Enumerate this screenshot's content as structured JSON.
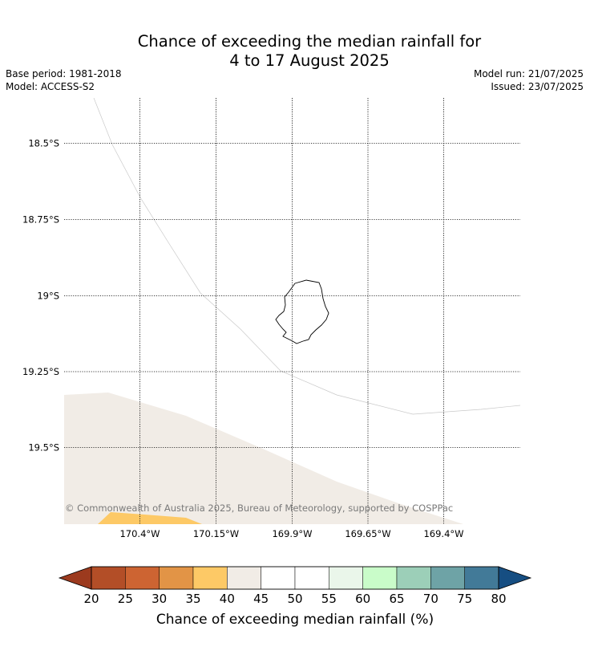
{
  "title": {
    "line1": "Chance of exceeding the median rainfall for",
    "line2": "4 to 17 August 2025"
  },
  "meta": {
    "base_period": "Base period: 1981-2018",
    "model": "Model: ACCESS-S2",
    "model_run": "Model run: 21/07/2025",
    "issued": "Issued: 23/07/2025"
  },
  "map": {
    "lat_labels": [
      "18.5°S",
      "18.75°S",
      "19°S",
      "19.25°S",
      "19.5°S"
    ],
    "lon_labels": [
      "170.4°W",
      "170.15°W",
      "169.9°W",
      "169.65°W",
      "169.4°W"
    ],
    "copyright": "© Commonwealth of Australia 2025, Bureau of Meteorology, supported by COSPPac",
    "island_name_icon": "island-outline",
    "fill_colors": {
      "band_40_45": "#f1ece6",
      "band_35_40": "#fdc966"
    }
  },
  "colorbar": {
    "label": "Chance of exceeding median rainfall (%)",
    "ticks": [
      "20",
      "25",
      "30",
      "35",
      "40",
      "45",
      "50",
      "55",
      "60",
      "65",
      "70",
      "75",
      "80"
    ],
    "segments": [
      {
        "range": "<20",
        "color": "#9c3a1e"
      },
      {
        "range": "20-25",
        "color": "#b34e27"
      },
      {
        "range": "25-30",
        "color": "#cd6432"
      },
      {
        "range": "30-35",
        "color": "#e29446"
      },
      {
        "range": "35-40",
        "color": "#fdc966"
      },
      {
        "range": "40-45",
        "color": "#f1ece6"
      },
      {
        "range": "45-50",
        "color": "#ffffff"
      },
      {
        "range": "50-55",
        "color": "#ffffff"
      },
      {
        "range": "55-60",
        "color": "#eaf6ea"
      },
      {
        "range": "60-65",
        "color": "#c9fcc9"
      },
      {
        "range": "65-70",
        "color": "#9ccfb8"
      },
      {
        "range": "70-75",
        "color": "#6ea3a6"
      },
      {
        "range": "75-80",
        "color": "#427a98"
      },
      {
        "range": ">80",
        "color": "#164e82"
      }
    ]
  }
}
